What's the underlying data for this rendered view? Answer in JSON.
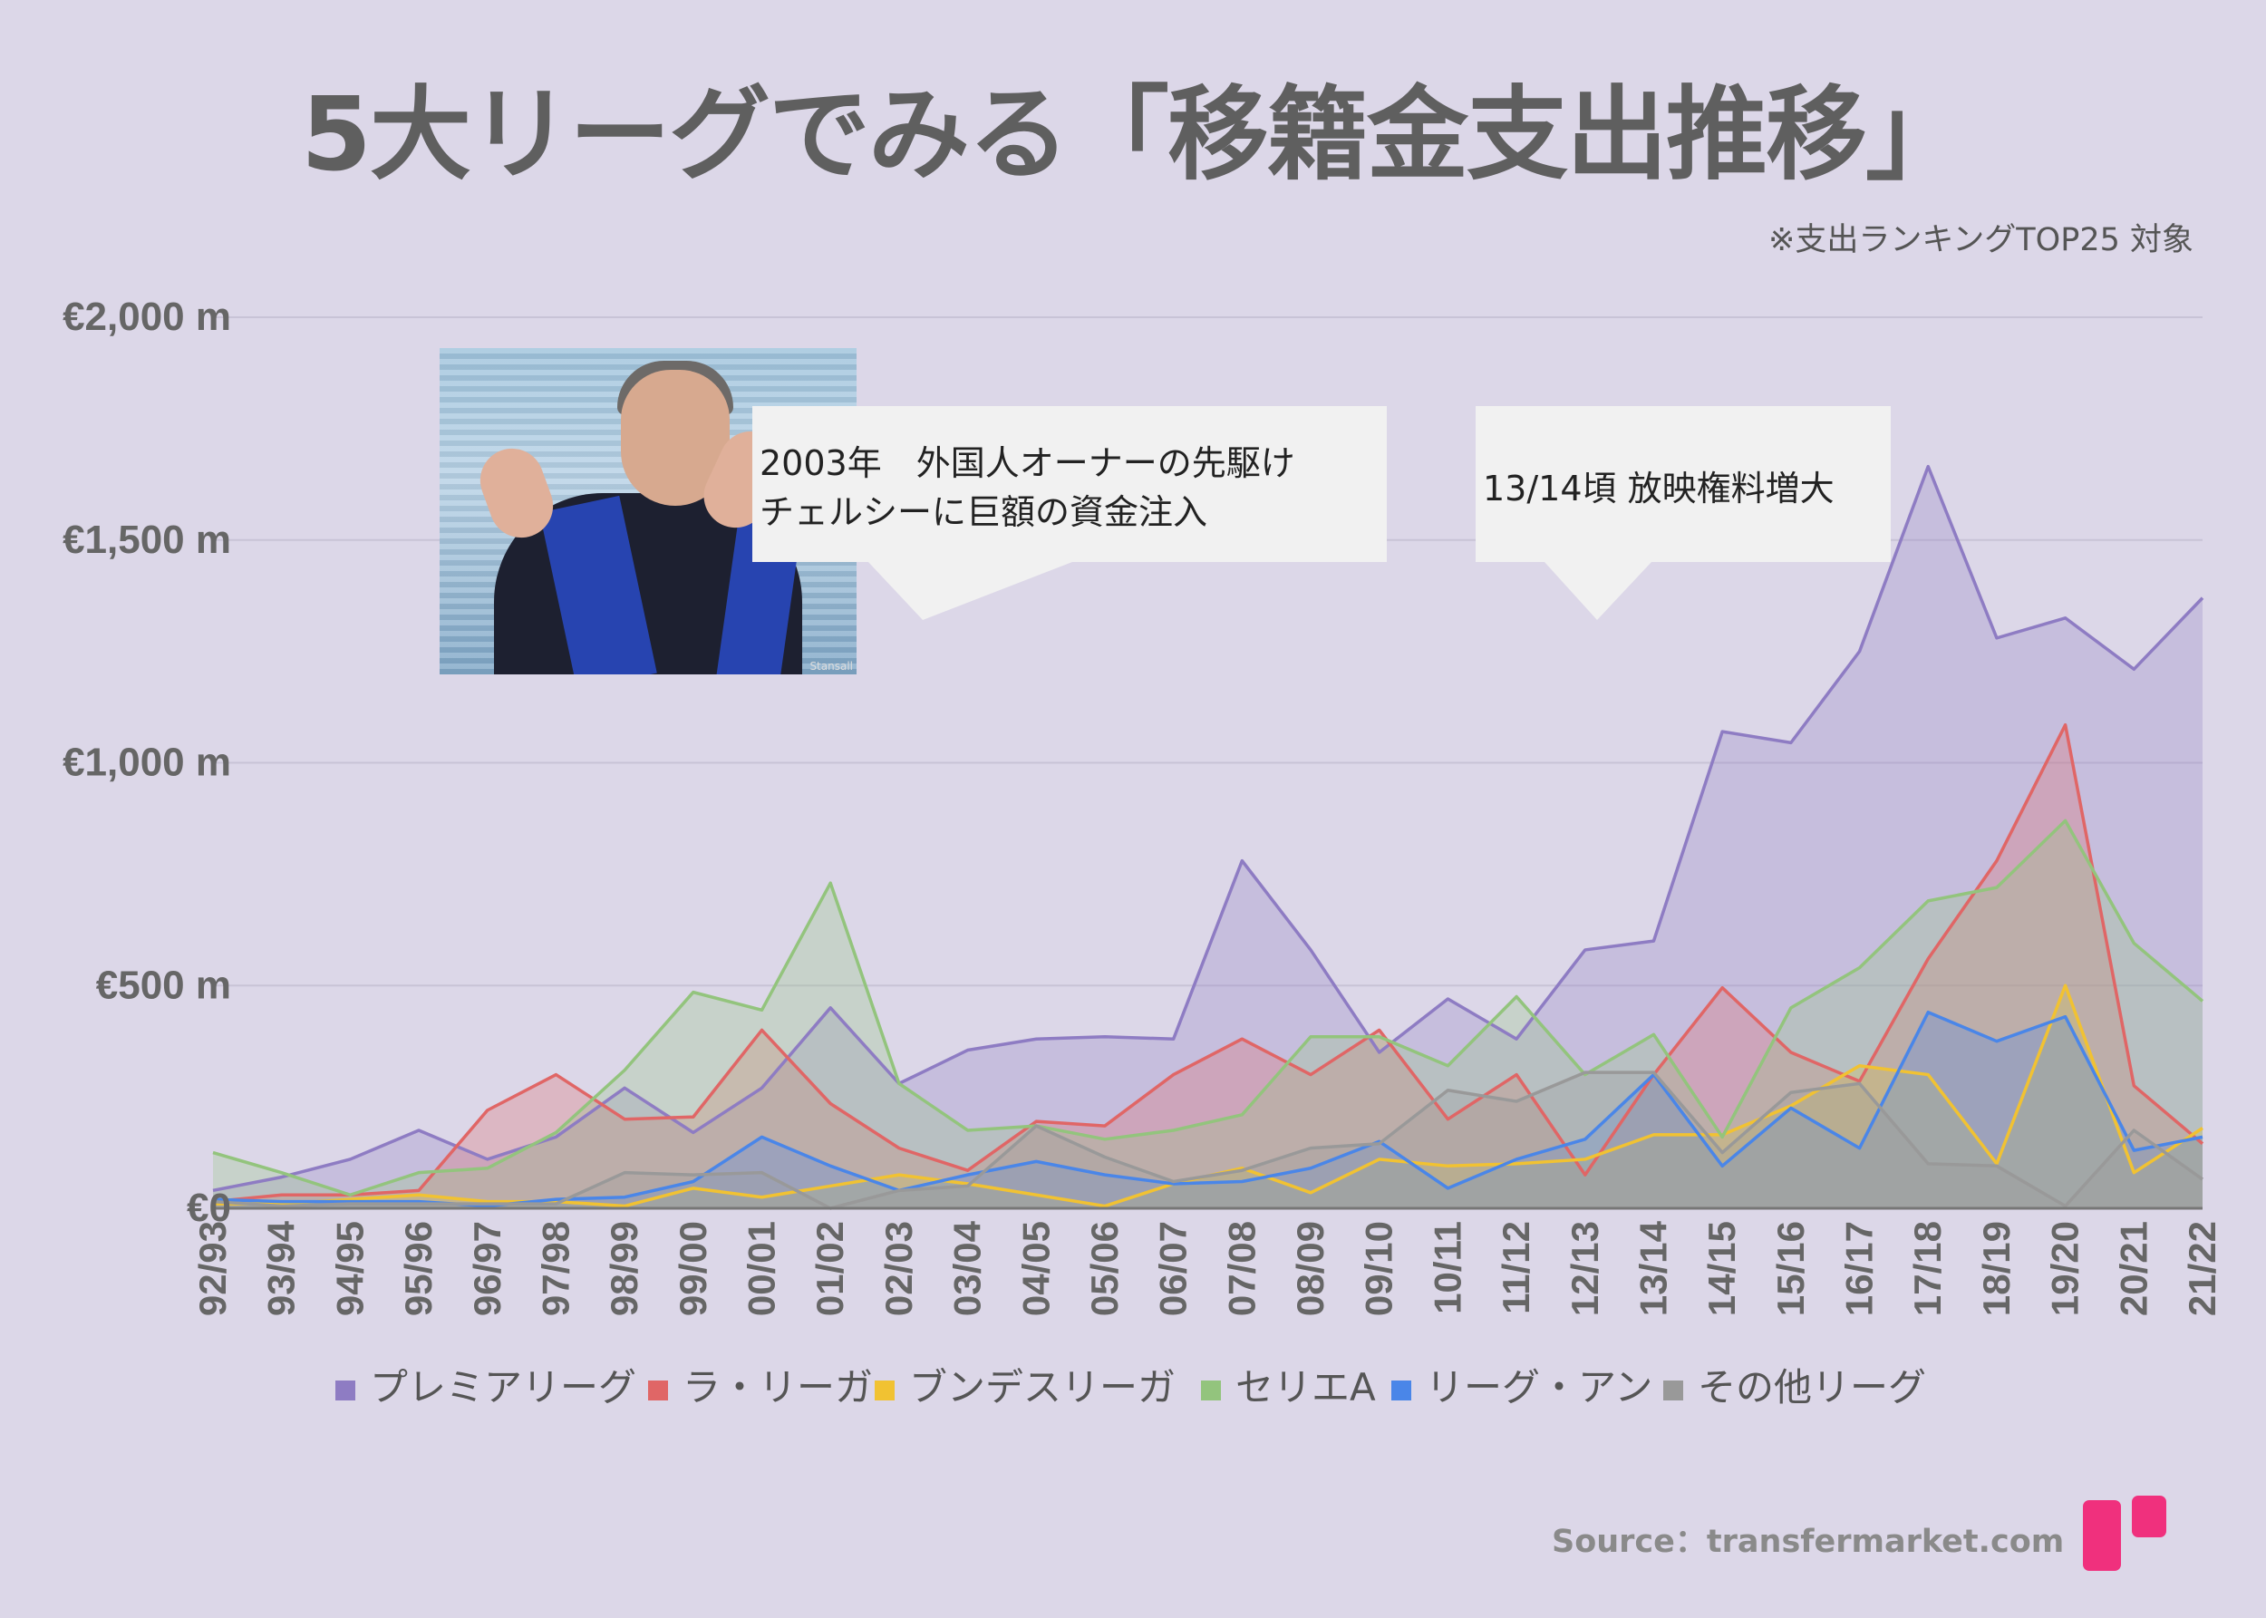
{
  "title": "5大リーグでみる「移籍金支出推移」",
  "subtitle": "※支出ランキングTOP25 対象",
  "callouts": [
    {
      "line1": "2003年　外国人オーナーの先駆け",
      "line2": "チェルシーに巨額の資金注入"
    },
    {
      "line1": "13/14頃 放映権料増大"
    }
  ],
  "photo_watermark": "Stansall",
  "source": "Source：transfermarket.com",
  "chart_data": {
    "type": "area",
    "categories": [
      "92/93",
      "93/94",
      "94/95",
      "95/96",
      "96/97",
      "97/98",
      "98/99",
      "99/00",
      "00/01",
      "01/02",
      "02/03",
      "03/04",
      "04/05",
      "05/06",
      "06/07",
      "07/08",
      "08/09",
      "09/10",
      "10/11",
      "11/12",
      "12/13",
      "13/14",
      "14/15",
      "15/16",
      "16/17",
      "17/18",
      "18/19",
      "19/20",
      "20/21",
      "21/22"
    ],
    "y_ticks": [
      {
        "value": 0,
        "label": "€0"
      },
      {
        "value": 500,
        "label": "€500 m"
      },
      {
        "value": 1000,
        "label": "€1,000 m"
      },
      {
        "value": 1500,
        "label": "€1,500 m"
      },
      {
        "value": 2000,
        "label": "€2,000 m"
      }
    ],
    "ylim": [
      0,
      2000
    ],
    "grid": true,
    "legend_position": "bottom",
    "series": [
      {
        "name": "プレミアリーグ",
        "color": "#8e7cc3",
        "values": [
          40,
          70,
          110,
          175,
          110,
          160,
          270,
          170,
          270,
          450,
          280,
          355,
          380,
          385,
          380,
          780,
          580,
          350,
          470,
          380,
          580,
          600,
          1070,
          1045,
          1250,
          1665,
          1280,
          1325,
          1210,
          1370
        ]
      },
      {
        "name": "ラ・リーガ",
        "color": "#e06666",
        "values": [
          15,
          30,
          30,
          40,
          220,
          300,
          200,
          205,
          400,
          235,
          135,
          85,
          195,
          185,
          300,
          380,
          300,
          400,
          200,
          300,
          75,
          300,
          495,
          350,
          285,
          560,
          780,
          1085,
          275,
          145
        ]
      },
      {
        "name": "ブンデスリーガ",
        "color": "#f1c232",
        "values": [
          10,
          10,
          20,
          30,
          15,
          15,
          5,
          45,
          25,
          50,
          75,
          55,
          30,
          5,
          55,
          90,
          35,
          110,
          95,
          100,
          110,
          165,
          165,
          230,
          320,
          300,
          100,
          500,
          80,
          180
        ]
      },
      {
        "name": "セリエA",
        "color": "#93c47d",
        "values": [
          125,
          80,
          30,
          80,
          90,
          170,
          310,
          485,
          445,
          730,
          280,
          175,
          185,
          155,
          175,
          210,
          385,
          385,
          320,
          475,
          300,
          390,
          160,
          450,
          540,
          690,
          720,
          870,
          595,
          465
        ]
      },
      {
        "name": "リーグ・アン",
        "color": "#4a86e8",
        "values": [
          20,
          15,
          15,
          15,
          5,
          20,
          25,
          60,
          160,
          95,
          40,
          75,
          105,
          75,
          55,
          60,
          90,
          150,
          45,
          110,
          155,
          300,
          95,
          225,
          135,
          440,
          375,
          430,
          130,
          160
        ]
      },
      {
        "name": "その他リーグ",
        "color": "#999999",
        "values": [
          15,
          5,
          10,
          10,
          10,
          10,
          80,
          75,
          80,
          0,
          40,
          50,
          185,
          115,
          60,
          85,
          135,
          145,
          265,
          240,
          305,
          305,
          125,
          260,
          280,
          100,
          95,
          5,
          175,
          65
        ]
      }
    ]
  }
}
